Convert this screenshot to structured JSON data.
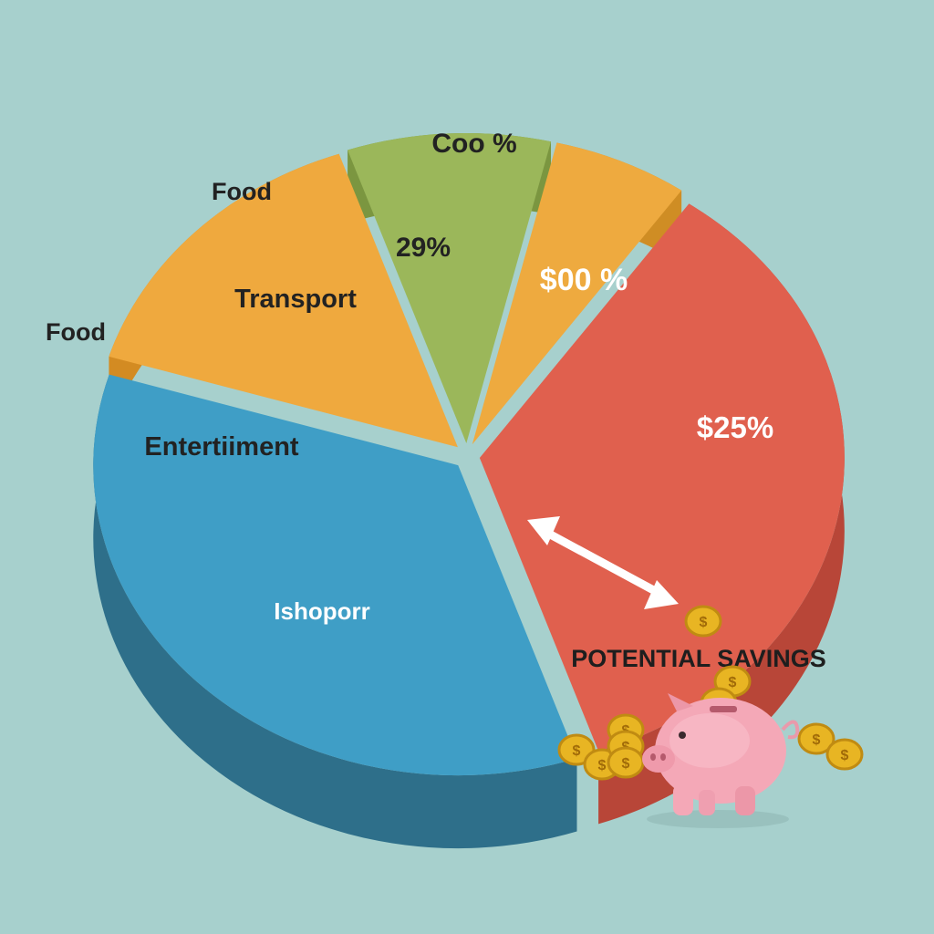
{
  "chart_data": {
    "type": "pie",
    "title": "",
    "slices": [
      {
        "label": "Entertiiment",
        "value": 15,
        "color": "#efa93e",
        "side": "#d38b22"
      },
      {
        "label": "Transport",
        "value": 9,
        "color": "#9bb75a",
        "side": "#7b9640"
      },
      {
        "label": "29%",
        "value": 6,
        "color": "#eeaa3f",
        "side": "#cf8d24"
      },
      {
        "label": "$00 %",
        "value": 35,
        "color": "#e0604e",
        "side": "#b84638"
      },
      {
        "label": "Ishoporr",
        "value": 35,
        "color": "#3f9ec6",
        "side": "#2e6f8a"
      }
    ],
    "inner_labels": {
      "red_second": "$25%"
    },
    "outer_labels": {
      "top": "Coo %",
      "upper_left": "Food",
      "left": "Food"
    },
    "annotation": {
      "text": "POTENTIAL SAVINGS",
      "icon": "piggy-bank-icon",
      "coin_icon": "dollar-coin-icon",
      "arrow_icon": "double-arrow-icon"
    },
    "colors": {
      "background": "#a7d0cd",
      "label_dark": "#222222",
      "label_light": "#ffffff"
    }
  }
}
